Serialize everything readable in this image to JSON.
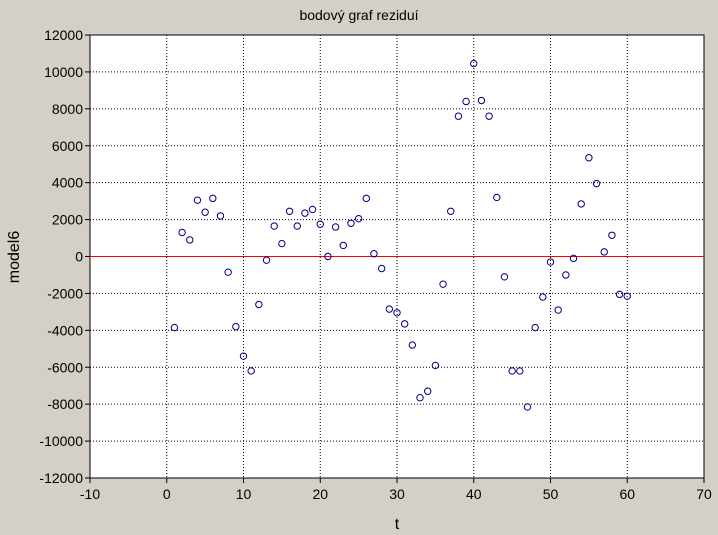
{
  "chart_data": {
    "type": "scatter",
    "title": "bodový graf reziduí",
    "xlabel": "t",
    "ylabel": "model6",
    "xlim": [
      -10,
      70
    ],
    "ylim": [
      -12000,
      12000
    ],
    "xticks": [
      -10,
      0,
      10,
      20,
      30,
      40,
      50,
      60,
      70
    ],
    "yticks": [
      -12000,
      -10000,
      -8000,
      -6000,
      -4000,
      -2000,
      0,
      2000,
      4000,
      6000,
      8000,
      10000,
      12000
    ],
    "grid": true,
    "reference_line": {
      "y": 0,
      "color": "#ff0000"
    },
    "marker_color": "#00007f",
    "series": [
      {
        "name": "model6",
        "points": [
          [
            1,
            -3850
          ],
          [
            2,
            1300
          ],
          [
            3,
            900
          ],
          [
            4,
            3050
          ],
          [
            5,
            2400
          ],
          [
            6,
            3150
          ],
          [
            7,
            2200
          ],
          [
            8,
            -850
          ],
          [
            9,
            -3800
          ],
          [
            10,
            -5400
          ],
          [
            11,
            -6200
          ],
          [
            12,
            -2600
          ],
          [
            13,
            -200
          ],
          [
            14,
            1650
          ],
          [
            15,
            700
          ],
          [
            16,
            2450
          ],
          [
            17,
            1650
          ],
          [
            18,
            2350
          ],
          [
            19,
            2550
          ],
          [
            20,
            1750
          ],
          [
            21,
            0
          ],
          [
            22,
            1600
          ],
          [
            23,
            600
          ],
          [
            24,
            1800
          ],
          [
            25,
            2050
          ],
          [
            26,
            3150
          ],
          [
            27,
            150
          ],
          [
            28,
            -650
          ],
          [
            29,
            -2850
          ],
          [
            30,
            -3050
          ],
          [
            31,
            -3650
          ],
          [
            32,
            -4800
          ],
          [
            33,
            -7650
          ],
          [
            34,
            -7300
          ],
          [
            35,
            -5900
          ],
          [
            36,
            -1500
          ],
          [
            37,
            2450
          ],
          [
            38,
            7600
          ],
          [
            39,
            8400
          ],
          [
            40,
            10450
          ],
          [
            41,
            8450
          ],
          [
            42,
            7600
          ],
          [
            43,
            3200
          ],
          [
            44,
            -1100
          ],
          [
            45,
            -6200
          ],
          [
            46,
            -6200
          ],
          [
            47,
            -8150
          ],
          [
            48,
            -3850
          ],
          [
            49,
            -2200
          ],
          [
            50,
            -300
          ],
          [
            51,
            -2900
          ],
          [
            52,
            -1000
          ],
          [
            53,
            -100
          ],
          [
            54,
            2850
          ],
          [
            55,
            5350
          ],
          [
            56,
            3950
          ],
          [
            57,
            250
          ],
          [
            58,
            1150
          ],
          [
            59,
            -2050
          ],
          [
            60,
            -2150
          ]
        ]
      }
    ]
  }
}
